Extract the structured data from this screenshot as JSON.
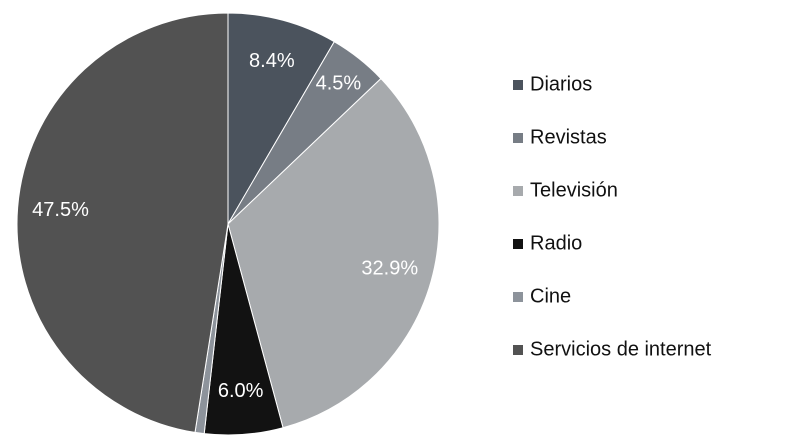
{
  "chart_data": {
    "type": "pie",
    "categories": [
      "Diarios",
      "Revistas",
      "Televisión",
      "Radio",
      "Cine",
      "Servicios de internet"
    ],
    "values": [
      8.4,
      4.5,
      32.9,
      6.0,
      0.7,
      47.5
    ],
    "value_labels": [
      "8.4%",
      "4.5%",
      "32.9%",
      "6.0%",
      null,
      "47.5%"
    ],
    "colors": [
      "#4b535d",
      "#777d85",
      "#a7aaad",
      "#121212",
      "#8d939b",
      "#525252"
    ],
    "legend": "right"
  }
}
